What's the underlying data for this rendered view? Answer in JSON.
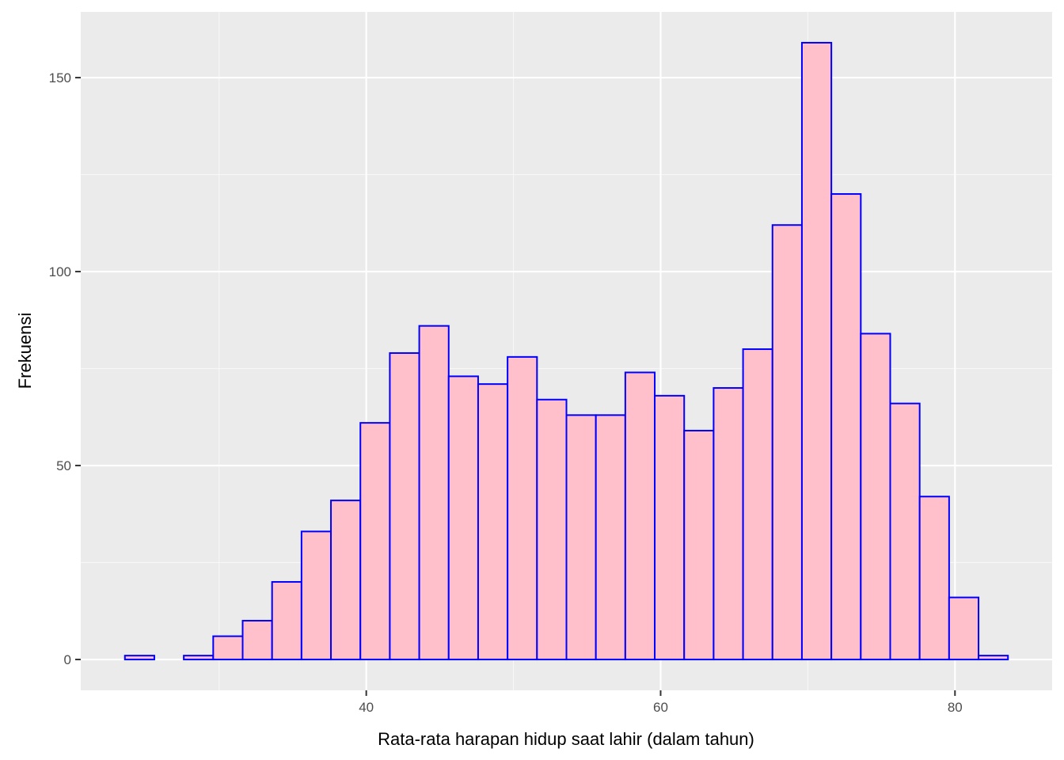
{
  "chart_data": {
    "type": "bar",
    "subtype": "histogram",
    "title": "",
    "xlabel": "Rata-rata harapan hidup saat lahir (dalam tahun)",
    "ylabel": "Frekuensi",
    "bin_width": 2.0,
    "bins": [
      {
        "start": 23.6,
        "end": 25.6,
        "count": 1
      },
      {
        "start": 25.6,
        "end": 27.6,
        "count": 0
      },
      {
        "start": 27.6,
        "end": 29.6,
        "count": 1
      },
      {
        "start": 29.6,
        "end": 31.6,
        "count": 6
      },
      {
        "start": 31.6,
        "end": 33.6,
        "count": 10
      },
      {
        "start": 33.6,
        "end": 35.6,
        "count": 20
      },
      {
        "start": 35.6,
        "end": 37.6,
        "count": 33
      },
      {
        "start": 37.6,
        "end": 39.6,
        "count": 41
      },
      {
        "start": 39.6,
        "end": 41.6,
        "count": 61
      },
      {
        "start": 41.6,
        "end": 43.6,
        "count": 79
      },
      {
        "start": 43.6,
        "end": 45.6,
        "count": 86
      },
      {
        "start": 45.6,
        "end": 47.6,
        "count": 73
      },
      {
        "start": 47.6,
        "end": 49.6,
        "count": 71
      },
      {
        "start": 49.6,
        "end": 51.6,
        "count": 78
      },
      {
        "start": 51.6,
        "end": 53.6,
        "count": 67
      },
      {
        "start": 53.6,
        "end": 55.6,
        "count": 63
      },
      {
        "start": 55.6,
        "end": 57.6,
        "count": 63
      },
      {
        "start": 57.6,
        "end": 59.6,
        "count": 74
      },
      {
        "start": 59.6,
        "end": 61.6,
        "count": 68
      },
      {
        "start": 61.6,
        "end": 63.6,
        "count": 59
      },
      {
        "start": 63.6,
        "end": 65.6,
        "count": 70
      },
      {
        "start": 65.6,
        "end": 67.6,
        "count": 80
      },
      {
        "start": 67.6,
        "end": 69.6,
        "count": 112
      },
      {
        "start": 69.6,
        "end": 71.6,
        "count": 159
      },
      {
        "start": 71.6,
        "end": 73.6,
        "count": 120
      },
      {
        "start": 73.6,
        "end": 75.6,
        "count": 84
      },
      {
        "start": 75.6,
        "end": 77.6,
        "count": 66
      },
      {
        "start": 77.6,
        "end": 79.6,
        "count": 42
      },
      {
        "start": 79.6,
        "end": 81.6,
        "count": 16
      },
      {
        "start": 81.6,
        "end": 83.6,
        "count": 1
      }
    ],
    "xlim": [
      20.6,
      86.6
    ],
    "ylim": [
      -7.95,
      166.95
    ],
    "x_ticks": [
      40,
      60,
      80
    ],
    "x_tick_labels": [
      "40",
      "60",
      "80"
    ],
    "y_ticks": [
      0,
      50,
      100,
      150
    ],
    "y_tick_labels": [
      "0",
      "50",
      "100",
      "150"
    ],
    "grid": true,
    "legend": "none",
    "colors": {
      "panel_background": "#ebebeb",
      "grid_major": "#ffffff",
      "grid_minor": "#f7f7f7",
      "bar_fill": "#ffc0cb",
      "bar_stroke": "#0000ff",
      "tick_text": "#4d4d4d",
      "axis_title_text": "#000000"
    }
  }
}
